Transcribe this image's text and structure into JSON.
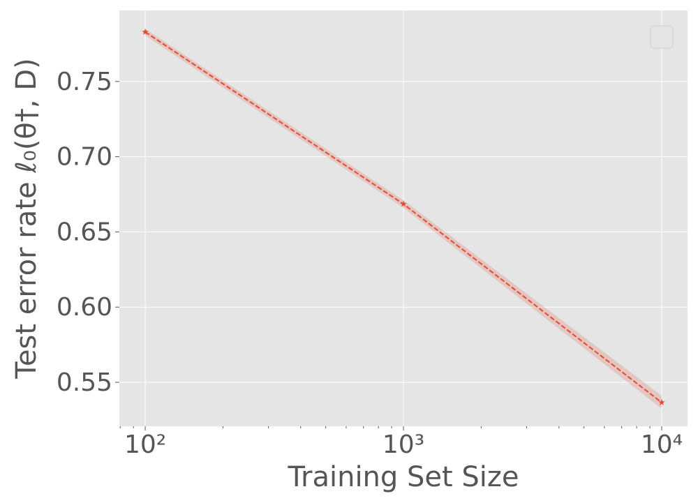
{
  "chart_data": {
    "type": "line",
    "xlabel": "Training Set Size",
    "ylabel": "Test error rate ℓ₀(θ†, D)",
    "x": [
      100,
      1000,
      10000
    ],
    "series": [
      {
        "color": "#e24a33",
        "values": [
          0.7829,
          0.6685,
          0.5366
        ],
        "lower": [
          0.7805,
          0.666,
          0.5325
        ],
        "upper": [
          0.785,
          0.671,
          0.541
        ]
      }
    ],
    "xscale": "log",
    "xlim": [
      79.4,
      12589
    ],
    "xticks": [
      {
        "value": 100,
        "label": "10²"
      },
      {
        "value": 1000,
        "label": "10³"
      },
      {
        "value": 10000,
        "label": "10⁴"
      }
    ],
    "xminorticks": [
      80,
      90,
      200,
      300,
      400,
      500,
      600,
      700,
      800,
      900,
      2000,
      3000,
      4000,
      5000,
      6000,
      7000,
      8000,
      9000
    ],
    "ylim": [
      0.5208,
      0.7972
    ],
    "yticks": [
      0.55,
      0.6,
      0.65,
      0.7,
      0.75
    ],
    "yticklabels": [
      "0.55",
      "0.60",
      "0.65",
      "0.70",
      "0.75"
    ],
    "grid": true,
    "legend": "upper right"
  }
}
